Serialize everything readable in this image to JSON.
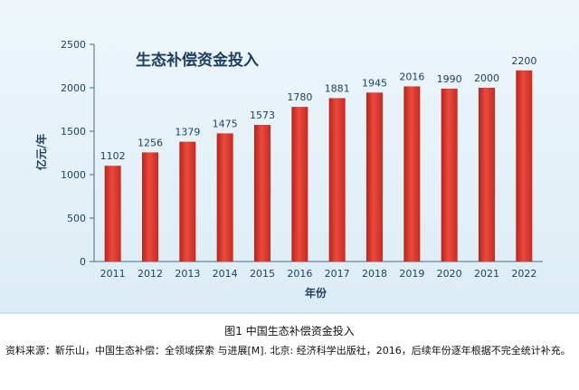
{
  "chart_data": {
    "type": "bar",
    "title": "生态补偿资金投入",
    "ylabel": "亿元/年",
    "xlabel": "年份",
    "categories": [
      "2011",
      "2012",
      "2013",
      "2014",
      "2015",
      "2016",
      "2017",
      "2018",
      "2019",
      "2020",
      "2021",
      "2022"
    ],
    "values": [
      1102,
      1256,
      1379,
      1475,
      1573,
      1780,
      1881,
      1945,
      2016,
      1990,
      2000,
      2200
    ],
    "ylim": [
      0,
      2500
    ],
    "yticks": [
      0,
      500,
      1000,
      1500,
      2000,
      2500
    ],
    "grid": false,
    "legend": "none",
    "bar_color": "#d93a30",
    "data_labels": true
  },
  "caption": "图1 中国生态补偿资金投入",
  "source_note": "资料来源：靳乐山，中国生态补偿：全领域探索 与进展[M]. 北京: 经济科学出版社，2016，后续年份逐年根据不完全统计补充。"
}
